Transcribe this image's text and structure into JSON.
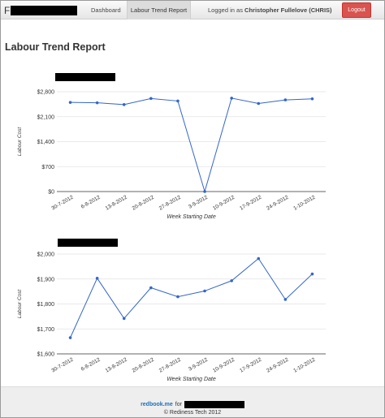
{
  "nav": {
    "brand_text": "F",
    "dashboard_label": "Dashboard",
    "trend_label": "Labour Trend Report",
    "logged_in_prefix": "Logged in as",
    "user_name": "Christopher Fullelove (CHRIS)",
    "logout_label": "Logout"
  },
  "page": {
    "title": "Labour Trend Report"
  },
  "charts": [
    {
      "ylabel": "Labour Cost",
      "xlabel": "Week Starting Date",
      "y_ticks": [
        "$2,800",
        "$2,100",
        "$1,400",
        "$700",
        "$0"
      ],
      "x_ticks": [
        "30-7-2012",
        "6-8-2012",
        "13-8-2012",
        "20-8-2012",
        "27-8-2012",
        "3-9-2012",
        "10-9-2012",
        "17-9-2012",
        "24-9-2012",
        "1-10-2012"
      ]
    },
    {
      "ylabel": "Labour Cost",
      "xlabel": "Week Starting Date",
      "y_ticks": [
        "$2,000",
        "$1,900",
        "$1,800",
        "$1,700",
        "$1,600"
      ],
      "x_ticks": [
        "30-7-2012",
        "6-8-2012",
        "13-8-2012",
        "20-8-2012",
        "27-8-2012",
        "3-9-2012",
        "10-9-2012",
        "17-9-2012",
        "24-9-2012",
        "1-10-2012"
      ]
    }
  ],
  "chart_data": [
    {
      "type": "line",
      "categories": [
        "30-7-2012",
        "6-8-2012",
        "13-8-2012",
        "20-8-2012",
        "27-8-2012",
        "3-9-2012",
        "10-9-2012",
        "17-9-2012",
        "24-9-2012",
        "1-10-2012"
      ],
      "values": [
        2500,
        2490,
        2440,
        2610,
        2540,
        0,
        2620,
        2470,
        2570,
        2600
      ],
      "xlabel": "Week Starting Date",
      "ylabel": "Labour Cost",
      "ylim": [
        0,
        2800
      ],
      "y_ticks": [
        0,
        700,
        1400,
        2100,
        2800
      ],
      "grid": true,
      "color": "#3366cc"
    },
    {
      "type": "line",
      "categories": [
        "30-7-2012",
        "6-8-2012",
        "13-8-2012",
        "20-8-2012",
        "27-8-2012",
        "3-9-2012",
        "10-9-2012",
        "17-9-2012",
        "24-9-2012",
        "1-10-2012"
      ],
      "values": [
        1665,
        1903,
        1742,
        1865,
        1829,
        1852,
        1893,
        1982,
        1818,
        1920
      ],
      "xlabel": "Week Starting Date",
      "ylabel": "Labour Cost",
      "ylim": [
        1600,
        2000
      ],
      "y_ticks": [
        1600,
        1700,
        1800,
        1900,
        2000
      ],
      "grid": true,
      "color": "#3366cc"
    }
  ],
  "footer": {
    "link_label": "redbook.me",
    "for_label": "for",
    "copyright": "© Rediness Tech 2012"
  }
}
